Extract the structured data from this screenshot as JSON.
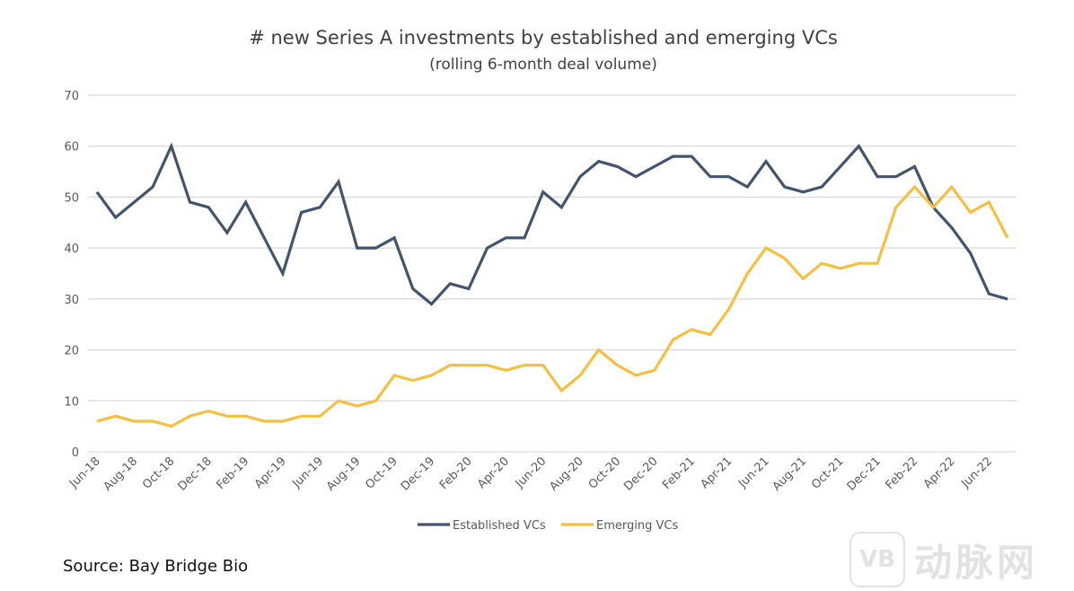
{
  "chart_data": {
    "type": "line",
    "title": "# new Series A investments by established and emerging VCs",
    "subtitle": "(rolling 6-month deal volume)",
    "xlabel": "",
    "ylabel": "",
    "ylim": [
      0,
      70
    ],
    "yticks": [
      0,
      10,
      20,
      30,
      40,
      50,
      60,
      70
    ],
    "grid": true,
    "legend_position": "bottom-center",
    "x": [
      "Jun-18",
      "Jul-18",
      "Aug-18",
      "Sep-18",
      "Oct-18",
      "Nov-18",
      "Dec-18",
      "Jan-19",
      "Feb-19",
      "Mar-19",
      "Apr-19",
      "May-19",
      "Jun-19",
      "Jul-19",
      "Aug-19",
      "Sep-19",
      "Oct-19",
      "Nov-19",
      "Dec-19",
      "Jan-20",
      "Feb-20",
      "Mar-20",
      "Apr-20",
      "May-20",
      "Jun-20",
      "Jul-20",
      "Aug-20",
      "Sep-20",
      "Oct-20",
      "Nov-20",
      "Dec-20",
      "Jan-21",
      "Feb-21",
      "Mar-21",
      "Apr-21",
      "May-21",
      "Jun-21",
      "Jul-21",
      "Aug-21",
      "Sep-21",
      "Oct-21",
      "Nov-21",
      "Dec-21",
      "Jan-22",
      "Feb-22",
      "Mar-22",
      "Apr-22",
      "May-22",
      "Jun-22",
      "Jul-22"
    ],
    "x_tick_labels": [
      "Jun-18",
      "Aug-18",
      "Oct-18",
      "Dec-18",
      "Feb-19",
      "Apr-19",
      "Jun-19",
      "Aug-19",
      "Oct-19",
      "Dec-19",
      "Feb-20",
      "Apr-20",
      "Jun-20",
      "Aug-20",
      "Oct-20",
      "Dec-20",
      "Feb-21",
      "Apr-21",
      "Jun-21",
      "Aug-21",
      "Oct-21",
      "Dec-21",
      "Feb-22",
      "Apr-22",
      "Jun-22"
    ],
    "series": [
      {
        "name": "Established VCs",
        "color": "#44546a",
        "values": [
          51,
          46,
          49,
          52,
          60,
          49,
          48,
          43,
          49,
          42,
          35,
          47,
          48,
          53,
          40,
          40,
          42,
          32,
          29,
          33,
          32,
          40,
          42,
          42,
          51,
          48,
          54,
          57,
          56,
          54,
          56,
          58,
          58,
          54,
          54,
          52,
          57,
          52,
          51,
          52,
          56,
          60,
          54,
          54,
          56,
          48,
          44,
          39,
          31,
          30
        ]
      },
      {
        "name": "Emerging VCs",
        "color": "#f4c042",
        "values": [
          6,
          7,
          6,
          6,
          5,
          7,
          8,
          7,
          7,
          6,
          6,
          7,
          7,
          10,
          9,
          10,
          15,
          14,
          15,
          17,
          17,
          17,
          16,
          17,
          17,
          12,
          15,
          20,
          17,
          15,
          16,
          22,
          24,
          23,
          28,
          35,
          40,
          38,
          34,
          37,
          36,
          37,
          37,
          48,
          52,
          48,
          52,
          47,
          49,
          42
        ]
      }
    ]
  },
  "source": "Source: Bay Bridge Bio",
  "watermark": {
    "logo": "VB",
    "text": "动脉网"
  }
}
